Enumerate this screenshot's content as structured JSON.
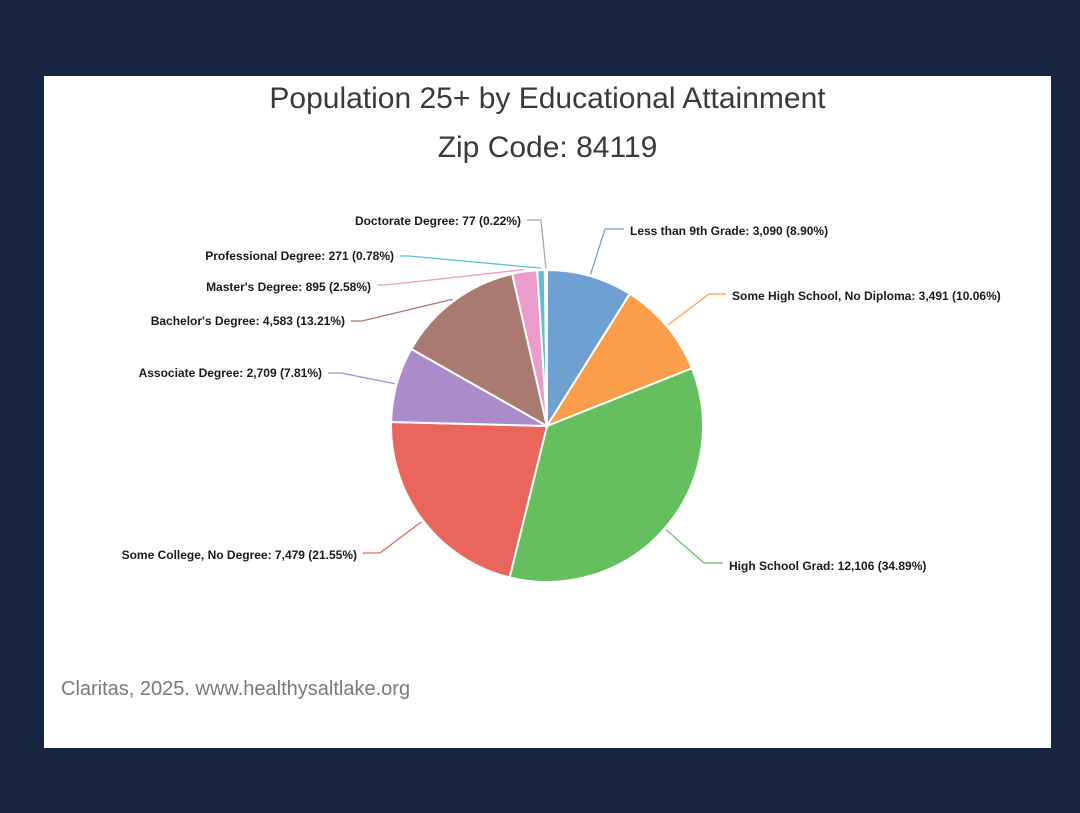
{
  "page": {
    "title_line1": "Population 25+ by Educational Attainment",
    "title_line2": "Zip Code: 84119",
    "source": "Claritas, 2025. www.healthysaltlake.org"
  },
  "chart_data": {
    "type": "pie",
    "title": "Population 25+ by Educational Attainment",
    "subtitle": "Zip Code: 84119",
    "legend": "none",
    "slices": [
      {
        "label": "Less than 9th Grade",
        "value": 3090,
        "percent": 8.9,
        "color": "#6fa0d2",
        "display": "Less than 9th Grade: 3,090 (8.90%)"
      },
      {
        "label": "Some High School, No Diploma",
        "value": 3491,
        "percent": 10.06,
        "color": "#fb9e4b",
        "display": "Some High School, No Diploma: 3,491 (10.06%)"
      },
      {
        "label": "High School Grad",
        "value": 12106,
        "percent": 34.89,
        "color": "#66bf5e",
        "display": "High School Grad: 12,106 (34.89%)"
      },
      {
        "label": "Some College, No Degree",
        "value": 7479,
        "percent": 21.55,
        "color": "#e9665d",
        "display": "Some College, No Degree: 7,479 (21.55%)"
      },
      {
        "label": "Associate Degree",
        "value": 2709,
        "percent": 7.81,
        "color": "#ab8bca",
        "display": "Associate Degree: 2,709 (7.81%)"
      },
      {
        "label": "Bachelor's Degree",
        "value": 4583,
        "percent": 13.21,
        "color": "#a97b70",
        "display": "Bachelor's Degree: 4,583 (13.21%)"
      },
      {
        "label": "Master's Degree",
        "value": 895,
        "percent": 2.58,
        "color": "#ec9ccc",
        "display": "Master's Degree: 895 (2.58%)"
      },
      {
        "label": "Professional Degree",
        "value": 271,
        "percent": 0.78,
        "color": "#57c1d5",
        "display": "Professional Degree: 271 (0.78%)"
      },
      {
        "label": "Doctorate Degree",
        "value": 77,
        "percent": 0.22,
        "color": "#a8a8a8",
        "display": "Doctorate Degree: 77 (0.22%)"
      }
    ]
  }
}
